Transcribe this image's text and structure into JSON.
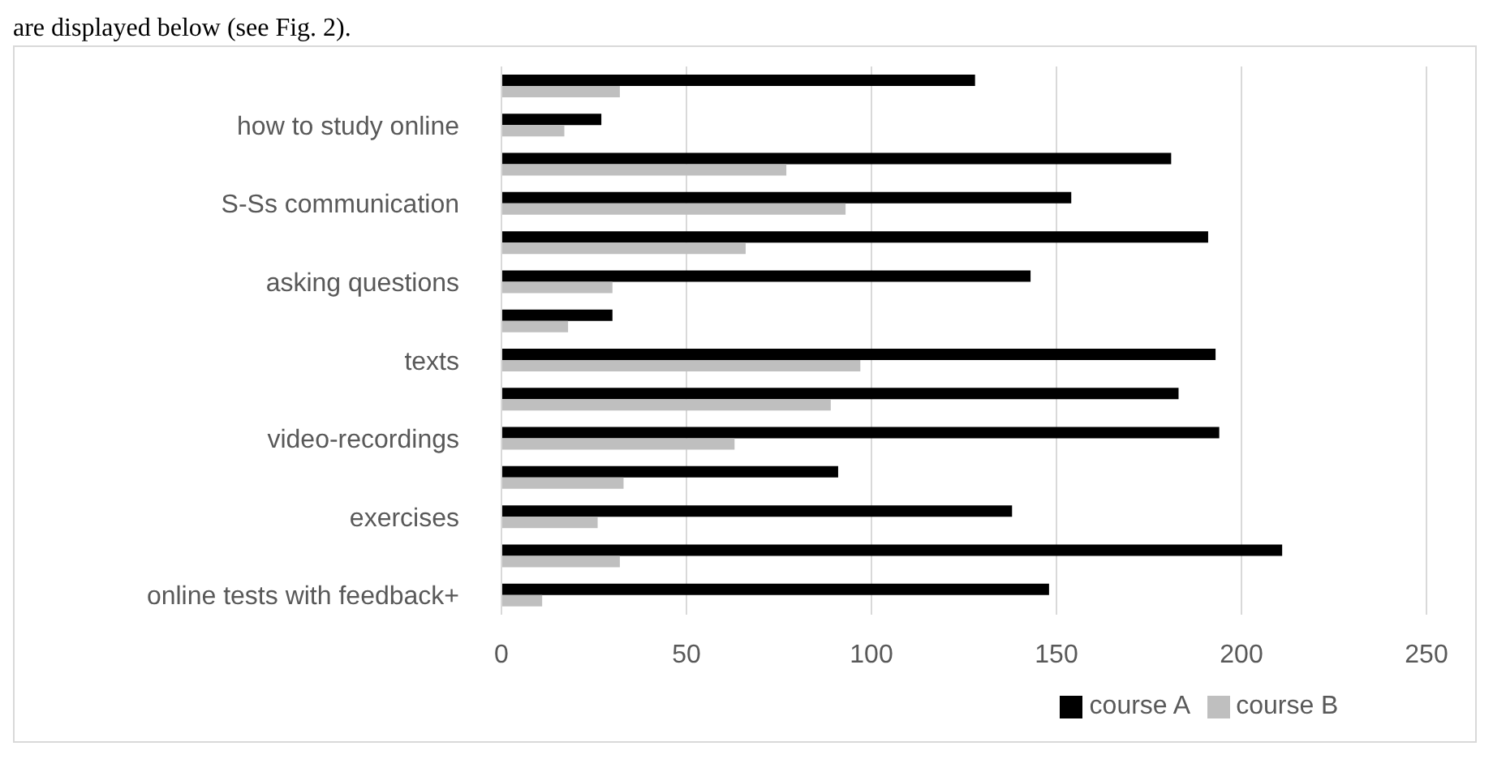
{
  "chart_data": {
    "type": "bar",
    "orientation": "horizontal",
    "annotations": [
      "are displayed below (see Fig. 2)."
    ],
    "categories": [
      null,
      "how to study online",
      null,
      "S-Ss communication",
      null,
      "asking questions",
      null,
      "texts",
      null,
      "video-recordings",
      null,
      "exercises",
      null,
      "online tests with feedback+"
    ],
    "series": [
      {
        "name": "course A",
        "color": "#000000",
        "values": [
          128,
          27,
          181,
          154,
          191,
          143,
          30,
          193,
          183,
          194,
          91,
          138,
          211,
          148
        ]
      },
      {
        "name": "course B",
        "color": "#bfbfbf",
        "values": [
          32,
          17,
          77,
          93,
          66,
          30,
          18,
          97,
          89,
          63,
          33,
          26,
          32,
          11
        ]
      }
    ],
    "xlim": [
      0,
      250
    ],
    "xticks": [
      0,
      50,
      100,
      150,
      200,
      250
    ],
    "grid": "x",
    "legend": "bottom"
  }
}
